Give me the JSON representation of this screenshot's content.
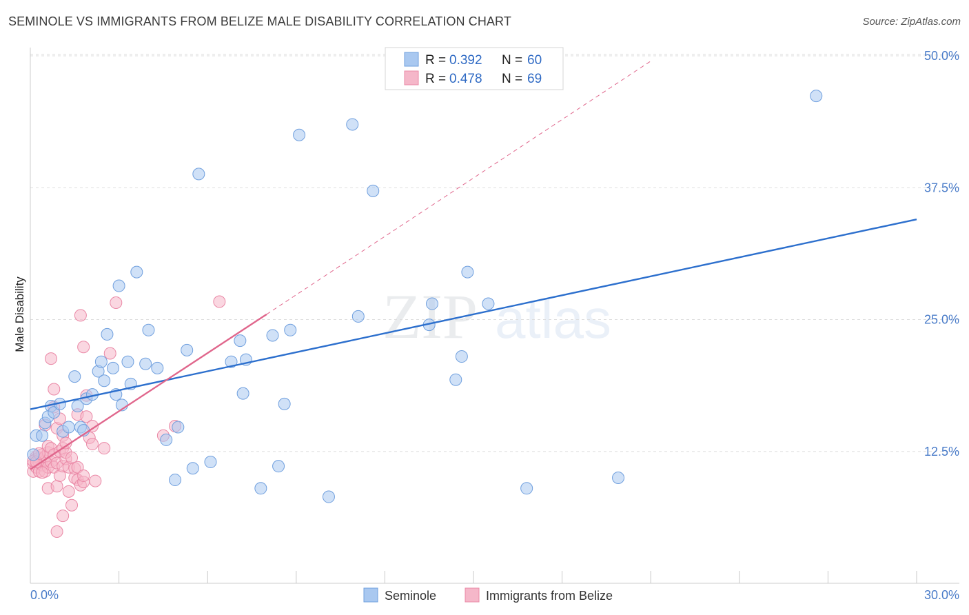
{
  "title": "SEMINOLE VS IMMIGRANTS FROM BELIZE MALE DISABILITY CORRELATION CHART",
  "source": "Source: ZipAtlas.com",
  "watermark": {
    "part1": "ZIP",
    "part2": "atlas"
  },
  "colors": {
    "seminole_fill": "#a9c8f0",
    "seminole_stroke": "#6f9fde",
    "seminole_line": "#2c6fcd",
    "belize_fill": "#f5b7c9",
    "belize_stroke": "#ea88a6",
    "belize_line": "#e0668c",
    "axis_label": "#4a7cc9",
    "grid": "#dddddd"
  },
  "legend": {
    "rows": [
      {
        "r_label": "R =",
        "r_value": "0.392",
        "n_label": "N =",
        "n_value": "60"
      },
      {
        "r_label": "R =",
        "r_value": "0.478",
        "n_label": "N =",
        "n_value": "69"
      }
    ]
  },
  "bottom_legend": [
    "Seminole",
    "Immigrants from Belize"
  ],
  "chart_data": {
    "type": "scatter",
    "title": "SEMINOLE VS IMMIGRANTS FROM BELIZE MALE DISABILITY CORRELATION CHART",
    "xlabel": "",
    "ylabel": "Male Disability",
    "xlim": [
      0,
      30
    ],
    "ylim": [
      0,
      52
    ],
    "x_tick_labels": [
      "0.0%",
      "30.0%"
    ],
    "y_ticks": [
      12.5,
      25.0,
      37.5,
      50.0
    ],
    "y_tick_labels": [
      "12.5%",
      "25.0%",
      "37.5%",
      "50.0%"
    ],
    "series": [
      {
        "name": "Seminole",
        "r": 0.392,
        "n": 60,
        "trend": {
          "x": [
            0,
            30
          ],
          "y": [
            16.5,
            34.5
          ],
          "dashed": false
        },
        "points": [
          [
            0.2,
            14.0
          ],
          [
            0.4,
            14.0
          ],
          [
            0.5,
            15.2
          ],
          [
            0.6,
            15.8
          ],
          [
            0.7,
            16.8
          ],
          [
            0.8,
            16.2
          ],
          [
            1.0,
            17.0
          ],
          [
            1.1,
            14.4
          ],
          [
            1.3,
            14.8
          ],
          [
            1.5,
            19.6
          ],
          [
            1.6,
            16.8
          ],
          [
            1.7,
            14.8
          ],
          [
            1.8,
            14.5
          ],
          [
            1.9,
            17.5
          ],
          [
            2.1,
            17.9
          ],
          [
            2.3,
            20.1
          ],
          [
            2.4,
            21.0
          ],
          [
            2.5,
            19.2
          ],
          [
            2.6,
            23.6
          ],
          [
            2.8,
            20.4
          ],
          [
            2.9,
            17.9
          ],
          [
            3.0,
            28.2
          ],
          [
            3.1,
            16.9
          ],
          [
            3.3,
            21.0
          ],
          [
            3.4,
            18.9
          ],
          [
            3.6,
            29.5
          ],
          [
            3.9,
            20.8
          ],
          [
            4.0,
            24.0
          ],
          [
            4.3,
            20.4
          ],
          [
            4.6,
            13.6
          ],
          [
            4.9,
            9.8
          ],
          [
            5.0,
            14.8
          ],
          [
            5.3,
            22.1
          ],
          [
            5.5,
            10.9
          ],
          [
            5.7,
            38.8
          ],
          [
            6.1,
            11.5
          ],
          [
            6.8,
            21.0
          ],
          [
            7.1,
            23.0
          ],
          [
            7.2,
            18.0
          ],
          [
            7.3,
            21.2
          ],
          [
            7.8,
            9.0
          ],
          [
            8.2,
            23.5
          ],
          [
            8.4,
            11.1
          ],
          [
            8.6,
            17.0
          ],
          [
            8.8,
            24.0
          ],
          [
            9.1,
            42.5
          ],
          [
            10.1,
            8.2
          ],
          [
            10.9,
            43.5
          ],
          [
            11.1,
            25.3
          ],
          [
            11.6,
            37.2
          ],
          [
            13.5,
            24.5
          ],
          [
            13.6,
            26.5
          ],
          [
            14.4,
            19.3
          ],
          [
            14.6,
            21.5
          ],
          [
            14.8,
            29.5
          ],
          [
            15.5,
            26.5
          ],
          [
            16.8,
            9.0
          ],
          [
            19.9,
            10.0
          ],
          [
            26.6,
            46.2
          ],
          [
            0.1,
            12.2
          ]
        ]
      },
      {
        "name": "Immigrants from Belize",
        "r": 0.478,
        "n": 69,
        "trend": {
          "x": [
            0,
            8.0
          ],
          "y": [
            10.8,
            25.5
          ],
          "dashed": false
        },
        "trend_extension": {
          "x": [
            8.0,
            21.0
          ],
          "y": [
            25.5,
            49.5
          ],
          "dashed": true
        },
        "points": [
          [
            0.1,
            11.3
          ],
          [
            0.1,
            10.6
          ],
          [
            0.2,
            11.8
          ],
          [
            0.2,
            11.0
          ],
          [
            0.2,
            12.0
          ],
          [
            0.3,
            11.4
          ],
          [
            0.3,
            10.6
          ],
          [
            0.3,
            11.9
          ],
          [
            0.4,
            11.2
          ],
          [
            0.4,
            12.2
          ],
          [
            0.5,
            10.6
          ],
          [
            0.5,
            11.6
          ],
          [
            0.5,
            12.0
          ],
          [
            0.5,
            15.0
          ],
          [
            0.6,
            11.0
          ],
          [
            0.6,
            12.4
          ],
          [
            0.6,
            9.0
          ],
          [
            0.6,
            13.0
          ],
          [
            0.7,
            11.5
          ],
          [
            0.7,
            12.8
          ],
          [
            0.7,
            21.3
          ],
          [
            0.8,
            11.0
          ],
          [
            0.8,
            12.2
          ],
          [
            0.8,
            16.7
          ],
          [
            0.8,
            18.4
          ],
          [
            0.9,
            11.4
          ],
          [
            0.9,
            14.7
          ],
          [
            0.9,
            9.2
          ],
          [
            0.9,
            4.9
          ],
          [
            1.0,
            12.5
          ],
          [
            1.0,
            10.2
          ],
          [
            1.0,
            15.6
          ],
          [
            1.1,
            11.1
          ],
          [
            1.1,
            12.8
          ],
          [
            1.1,
            14.0
          ],
          [
            1.1,
            6.4
          ],
          [
            1.2,
            11.8
          ],
          [
            1.2,
            12.4
          ],
          [
            1.2,
            13.3
          ],
          [
            1.3,
            8.7
          ],
          [
            1.3,
            11.0
          ],
          [
            1.4,
            11.9
          ],
          [
            1.4,
            7.4
          ],
          [
            1.5,
            10.0
          ],
          [
            1.5,
            10.9
          ],
          [
            1.6,
            11.0
          ],
          [
            1.6,
            16.0
          ],
          [
            1.6,
            9.8
          ],
          [
            1.7,
            25.4
          ],
          [
            1.7,
            9.3
          ],
          [
            1.8,
            22.4
          ],
          [
            1.8,
            9.6
          ],
          [
            1.8,
            10.2
          ],
          [
            1.9,
            17.8
          ],
          [
            1.9,
            15.8
          ],
          [
            2.0,
            13.8
          ],
          [
            2.1,
            14.9
          ],
          [
            2.1,
            13.2
          ],
          [
            2.2,
            9.7
          ],
          [
            2.5,
            12.8
          ],
          [
            2.7,
            21.8
          ],
          [
            2.9,
            26.6
          ],
          [
            4.5,
            14.0
          ],
          [
            4.9,
            14.9
          ],
          [
            6.4,
            26.7
          ],
          [
            0.1,
            11.6
          ],
          [
            0.2,
            11.5
          ],
          [
            0.4,
            10.5
          ],
          [
            0.3,
            12.3
          ]
        ]
      }
    ]
  }
}
